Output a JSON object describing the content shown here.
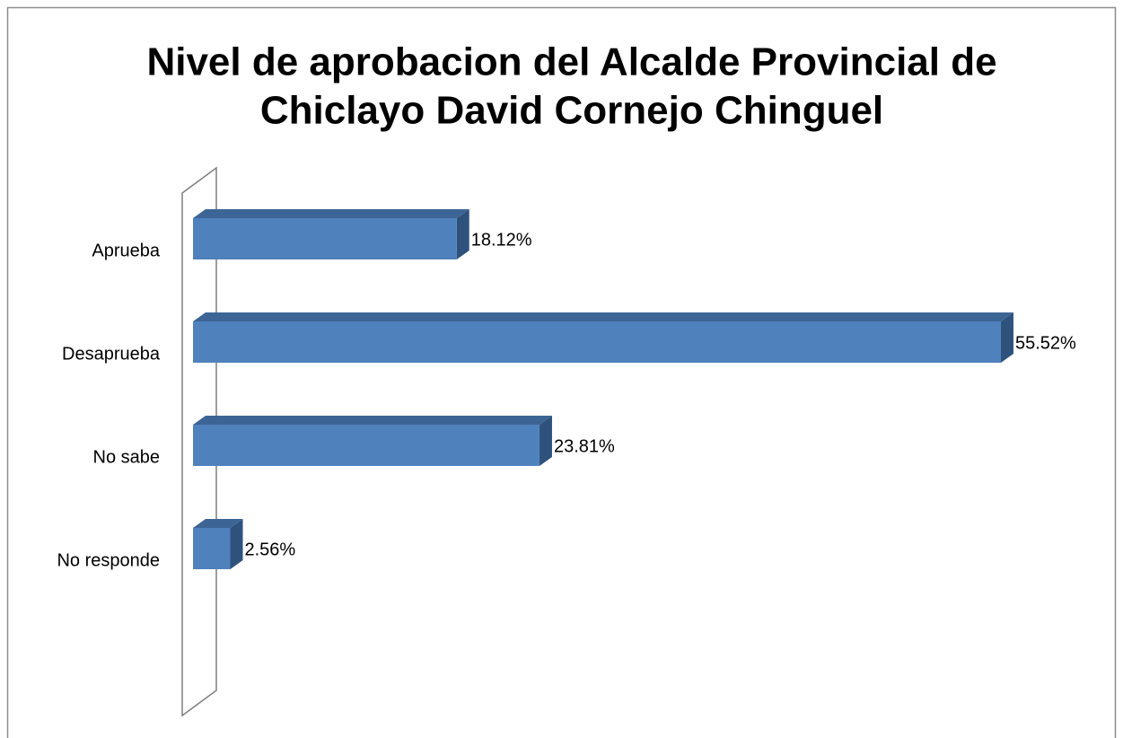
{
  "chart_data": {
    "type": "bar3d_horizontal",
    "title": [
      "Nivel de aprobacion del Alcalde Provincial de",
      "Chiclayo David Cornejo Chinguel"
    ],
    "categories": [
      "Aprueba",
      "Desaprueba",
      "No sabe",
      "No responde"
    ],
    "values": [
      18.12,
      55.52,
      23.81,
      2.56
    ],
    "value_labels": [
      "18.12%",
      "55.52%",
      "23.81%",
      "2.56%"
    ],
    "color": "#4f81bd"
  }
}
